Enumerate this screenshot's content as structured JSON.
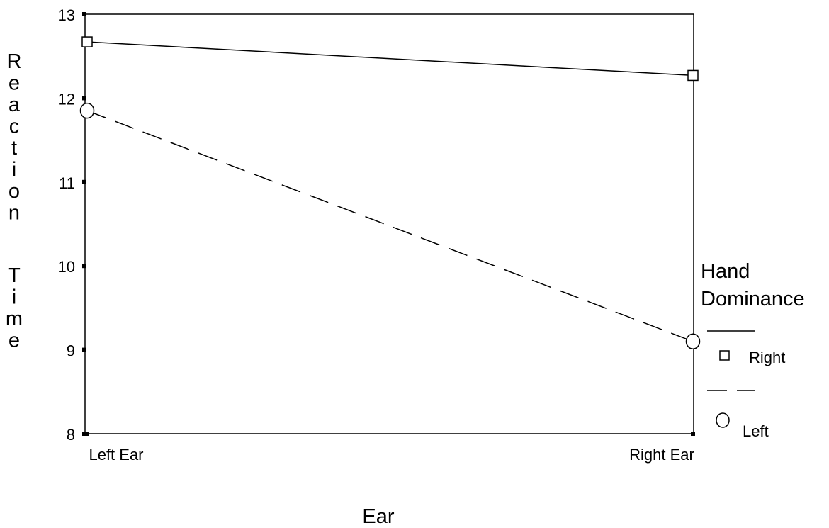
{
  "chart_data": {
    "type": "line",
    "title": "",
    "xlabel": "Ear",
    "ylabel": "Reaction Time",
    "categories": [
      "Left Ear",
      "Right Ear"
    ],
    "ylim": [
      8,
      13
    ],
    "yticks": [
      "8",
      "9",
      "10",
      "11",
      "12",
      "13"
    ],
    "grid": false,
    "legend": {
      "title": "Hand Dominance",
      "position": "right"
    },
    "series": [
      {
        "name": "Right",
        "values": [
          12.67,
          12.27
        ],
        "line_style": "solid",
        "marker": "square",
        "color": "#000000"
      },
      {
        "name": "Left",
        "values": [
          11.85,
          9.1
        ],
        "line_style": "dashed",
        "marker": "circle",
        "color": "#000000"
      }
    ]
  }
}
